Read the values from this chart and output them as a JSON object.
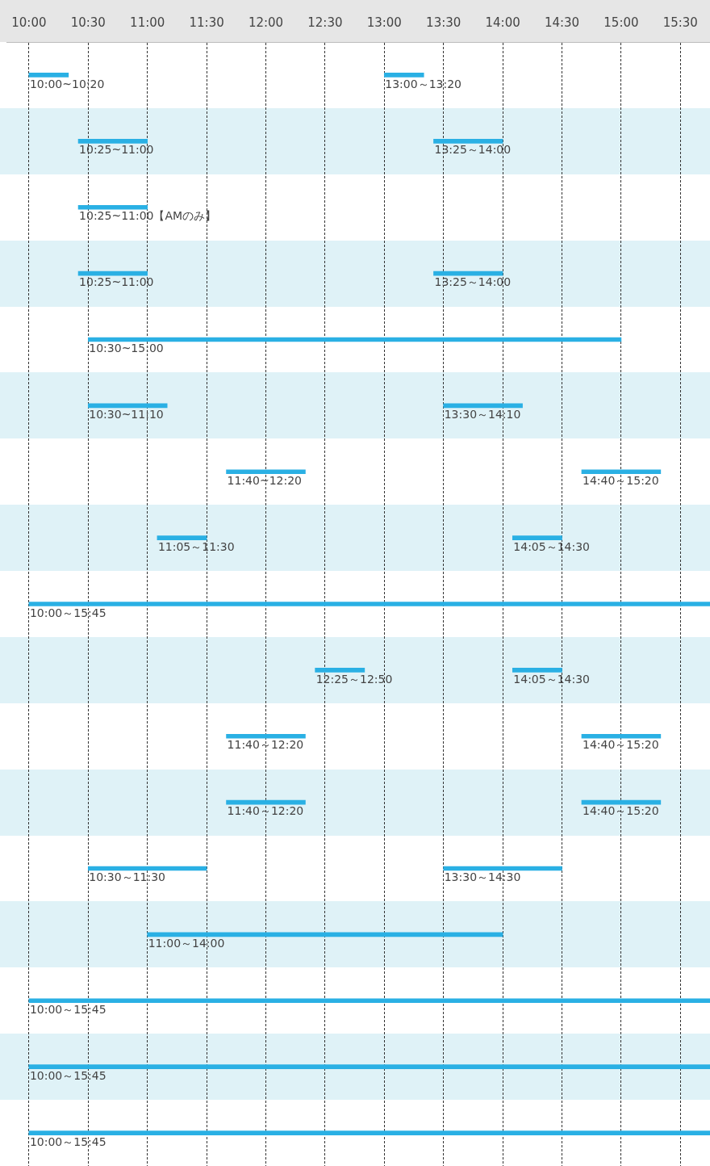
{
  "chart_data": {
    "type": "bar",
    "orientation": "horizontal",
    "categories": [
      null,
      null,
      null,
      null,
      null,
      null,
      null,
      null,
      null,
      null,
      null,
      null,
      null,
      null,
      null,
      null,
      null
    ],
    "xlim": [
      9.81,
      15.75
    ],
    "xticks": [
      {
        "value": 10,
        "label": "10:00"
      },
      {
        "value": 10.5,
        "label": "10:30"
      },
      {
        "value": 11,
        "label": "11:00"
      },
      {
        "value": 11.5,
        "label": "11:30"
      },
      {
        "value": 12,
        "label": "12:00"
      },
      {
        "value": 12.5,
        "label": "12:30"
      },
      {
        "value": 13,
        "label": "13:00"
      },
      {
        "value": 13.5,
        "label": "13:30"
      },
      {
        "value": 14,
        "label": "14:00"
      },
      {
        "value": 14.5,
        "label": "14:30"
      },
      {
        "value": 15,
        "label": "15:00"
      },
      {
        "value": 15.5,
        "label": "15:30"
      }
    ],
    "grid": "x",
    "legend": false,
    "series": [
      {
        "color": "#2ab0e4",
        "base": [
          10,
          10.4167,
          10.4167,
          10.4167,
          10.5,
          10.5,
          11.6667,
          11.0833,
          10,
          12.4167,
          11.6667,
          11.6667,
          10.5,
          11,
          10,
          10,
          10
        ],
        "values": [
          0.3333,
          0.5833,
          0.5833,
          0.5833,
          4.5,
          0.6667,
          0.6667,
          0.4167,
          5.75,
          0.4167,
          0.6667,
          0.6667,
          1,
          3,
          5.75,
          5.75,
          5.75
        ],
        "value_labels": [
          "10:00~10:20",
          "10:25~11:00",
          "10:25~11:00【AMのみ】",
          "10:25~11:00",
          "10:30~15:00",
          "10:30~11:10",
          "11:40~12:20",
          "11:05～11:30",
          "10:00～15:45",
          "12:25～12:50",
          "11:40～12:20",
          "11:40～12:20",
          "10:30～11:30",
          "11:00～14:00",
          "10:00～15:45",
          "10:00～15:45",
          "10:00～15:45"
        ]
      },
      {
        "color": "#2ab0e4",
        "base": [
          13,
          13.4167,
          null,
          13.4167,
          null,
          13.5,
          14.6667,
          14.0833,
          null,
          14.0833,
          14.6667,
          14.6667,
          13.5,
          null,
          null,
          null,
          null
        ],
        "values": [
          0.3333,
          0.5833,
          null,
          0.5833,
          null,
          0.6667,
          0.6667,
          0.4167,
          null,
          0.4167,
          0.6667,
          0.6667,
          1,
          null,
          null,
          null,
          null
        ],
        "value_labels": [
          "13:00～13:20",
          "13:25～14:00",
          null,
          "13:25～14:00",
          null,
          "13:30～14:10",
          "14:40～15:20",
          "14:05～14:30",
          null,
          "14:05～14:30",
          "14:40～15:20",
          "14:40～15:20",
          "13:30～14:30",
          null,
          null,
          null,
          null
        ]
      }
    ]
  }
}
